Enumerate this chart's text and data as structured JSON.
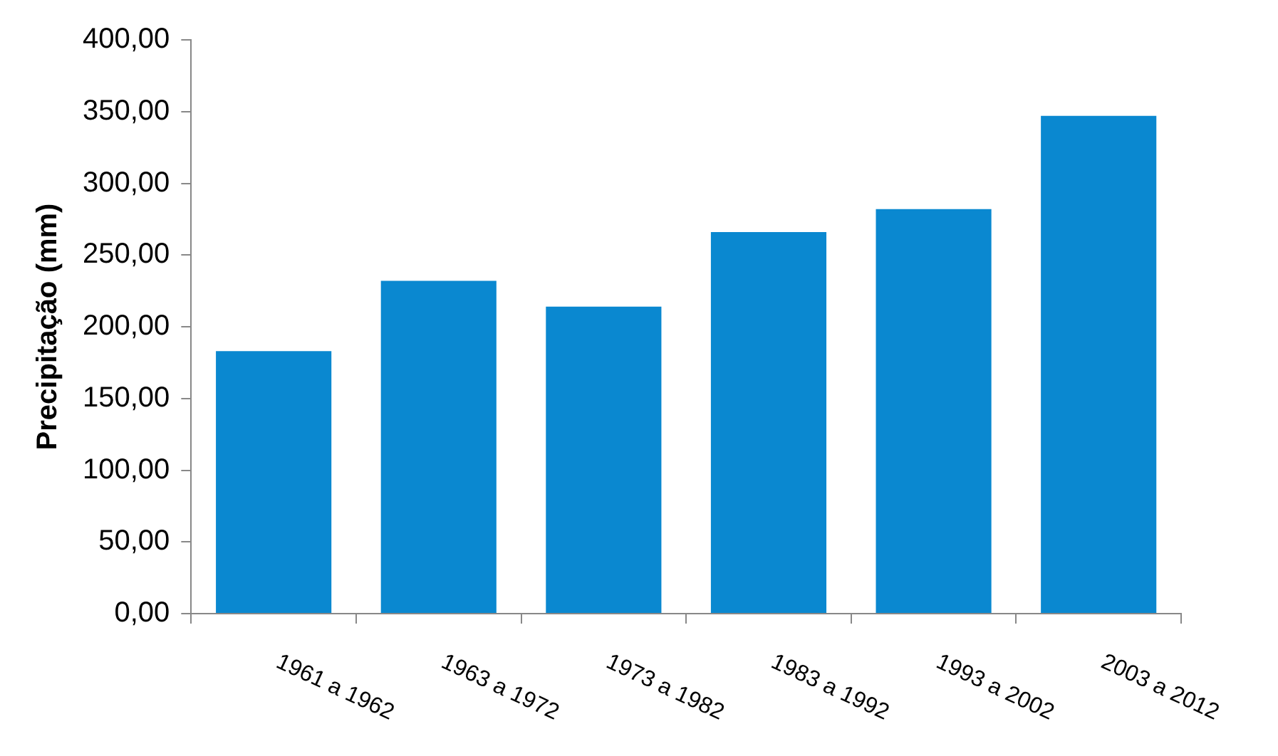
{
  "chart_data": {
    "type": "bar",
    "ylabel": "Precipitação (mm)",
    "categories": [
      "1961 a 1962",
      "1963 a 1972",
      "1973 a 1982",
      "1983 a 1992",
      "1993 a 2002",
      "2003 a 2012"
    ],
    "values": [
      183,
      232,
      214,
      266,
      282,
      347
    ],
    "color": "#0a88d0",
    "ylim": [
      0,
      400
    ],
    "yticks": [
      {
        "value": 0,
        "label": "0,00"
      },
      {
        "value": 50,
        "label": "50,00"
      },
      {
        "value": 100,
        "label": "100,00"
      },
      {
        "value": 150,
        "label": "150,00"
      },
      {
        "value": 200,
        "label": "200,00"
      },
      {
        "value": 250,
        "label": "250,00"
      },
      {
        "value": 300,
        "label": "300,00"
      },
      {
        "value": 350,
        "label": "350,00"
      },
      {
        "value": 400,
        "label": "400,00"
      }
    ],
    "grid": false,
    "legend": false
  }
}
